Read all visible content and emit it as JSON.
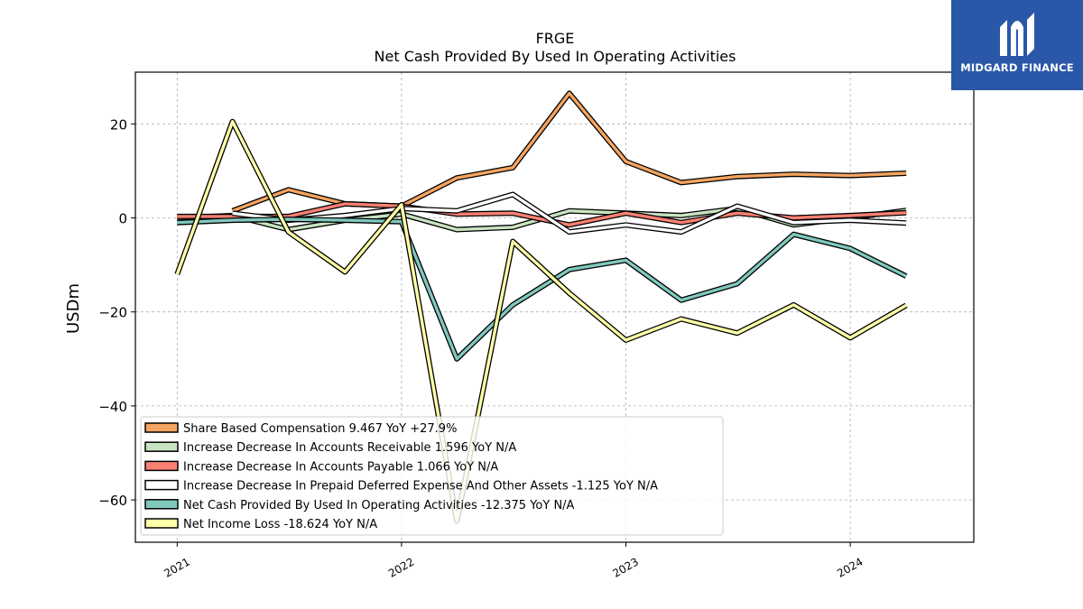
{
  "chart_data": {
    "type": "line",
    "title": "FRGE",
    "subtitle": "Net Cash Provided By Used In Operating Activities",
    "ylabel": "USDm",
    "xlabel": "",
    "xlim": [
      "2020-10-25",
      "2024-07-20"
    ],
    "ylim": [
      -69,
      31
    ],
    "x_ticks": [
      "2021",
      "2022",
      "2023",
      "2024"
    ],
    "y_ticks": [
      20,
      0,
      -20,
      -40,
      -60
    ],
    "grid": true,
    "legend_position": "lower-left",
    "series": [
      {
        "name": "Share Based Compensation",
        "legend_label": "Share Based Compensation  9.467 YoY +27.9%",
        "color": "#f4a460",
        "x": [
          "2021-04-01",
          "2021-07-01",
          "2021-10-01",
          "2022-01-01",
          "2022-04-01",
          "2022-07-01",
          "2022-10-01",
          "2023-01-01",
          "2023-04-01",
          "2023-07-01",
          "2023-10-01",
          "2024-01-01",
          "2024-04-01"
        ],
        "values": [
          1.5,
          6.0,
          3.0,
          2.5,
          8.5,
          10.7,
          26.5,
          12.0,
          7.5,
          8.8,
          9.3,
          9.0,
          9.5
        ]
      },
      {
        "name": "Increase Decrease In Accounts Receivable",
        "legend_label": "Increase Decrease In Accounts Receivable  1.596 YoY N/A",
        "color": "#c9e4c0",
        "x": [
          "2021-01-01",
          "2021-04-01",
          "2021-07-01",
          "2021-10-01",
          "2022-01-01",
          "2022-04-01",
          "2022-07-01",
          "2022-10-01",
          "2023-01-01",
          "2023-04-01",
          "2023-07-01",
          "2023-10-01",
          "2024-01-01",
          "2024-04-01"
        ],
        "values": [
          0.0,
          0.5,
          -2.5,
          -0.5,
          0.8,
          -2.5,
          -2.0,
          1.5,
          1.0,
          0.5,
          2.0,
          -1.5,
          0.0,
          1.6
        ]
      },
      {
        "name": "Increase Decrease In Accounts Payable",
        "legend_label": "Increase Decrease In Accounts Payable  1.066 YoY N/A",
        "color": "#fa8072",
        "x": [
          "2021-01-01",
          "2021-04-01",
          "2021-07-01",
          "2021-10-01",
          "2022-01-01",
          "2022-04-01",
          "2022-07-01",
          "2022-10-01",
          "2023-01-01",
          "2023-04-01",
          "2023-07-01",
          "2023-10-01",
          "2024-01-01",
          "2024-04-01"
        ],
        "values": [
          0.3,
          0.3,
          0.3,
          3.0,
          2.5,
          0.8,
          1.0,
          -1.5,
          1.0,
          -1.0,
          1.0,
          0.0,
          0.5,
          1.1
        ]
      },
      {
        "name": "Increase Decrease In Prepaid Deferred Expense And Other Assets",
        "legend_label": "Increase Decrease In Prepaid Deferred Expense And Other Assets  -1.125 YoY N/A",
        "color": "#ffffff",
        "x": [
          "2021-04-01",
          "2021-07-01",
          "2021-10-01",
          "2022-01-01",
          "2022-04-01",
          "2022-07-01",
          "2022-10-01",
          "2023-01-01",
          "2023-04-01",
          "2023-07-01",
          "2023-10-01",
          "2024-01-01",
          "2024-04-01"
        ],
        "values": [
          1.0,
          -0.5,
          0.5,
          2.0,
          1.5,
          5.0,
          -3.0,
          -1.5,
          -3.0,
          2.5,
          -1.0,
          -0.5,
          -1.1
        ]
      },
      {
        "name": "Net Cash Provided By Used In Operating Activities",
        "legend_label": "Net Cash Provided By Used In Operating Activities  -12.375 YoY N/A",
        "color": "#7fc8bd",
        "x": [
          "2021-01-01",
          "2021-04-01",
          "2021-07-01",
          "2021-10-01",
          "2022-01-01",
          "2022-04-01",
          "2022-07-01",
          "2022-10-01",
          "2023-01-01",
          "2023-04-01",
          "2023-07-01",
          "2023-10-01",
          "2024-01-01",
          "2024-04-01"
        ],
        "values": [
          -1.0,
          -0.5,
          -0.3,
          -0.5,
          -0.8,
          -30.0,
          -18.5,
          -11.0,
          -9.0,
          -17.5,
          -14.0,
          -3.5,
          -6.5,
          -12.4
        ]
      },
      {
        "name": "Net Income Loss",
        "legend_label": "Net Income Loss  -18.624 YoY N/A",
        "color": "#ffffa8",
        "x": [
          "2021-01-01",
          "2021-04-01",
          "2021-07-01",
          "2021-10-01",
          "2022-01-01",
          "2022-04-01",
          "2022-07-01",
          "2022-10-01",
          "2023-01-01",
          "2023-04-01",
          "2023-07-01",
          "2023-10-01",
          "2024-01-01",
          "2024-04-01"
        ],
        "values": [
          -12.0,
          20.5,
          -3.0,
          -11.5,
          2.8,
          -64.5,
          -5.0,
          -16.0,
          -26.0,
          -21.5,
          -24.5,
          -18.5,
          -25.5,
          -18.6
        ]
      }
    ]
  },
  "logo": {
    "text": "MIDGARD FINANCE",
    "background": "#2a57a8"
  }
}
